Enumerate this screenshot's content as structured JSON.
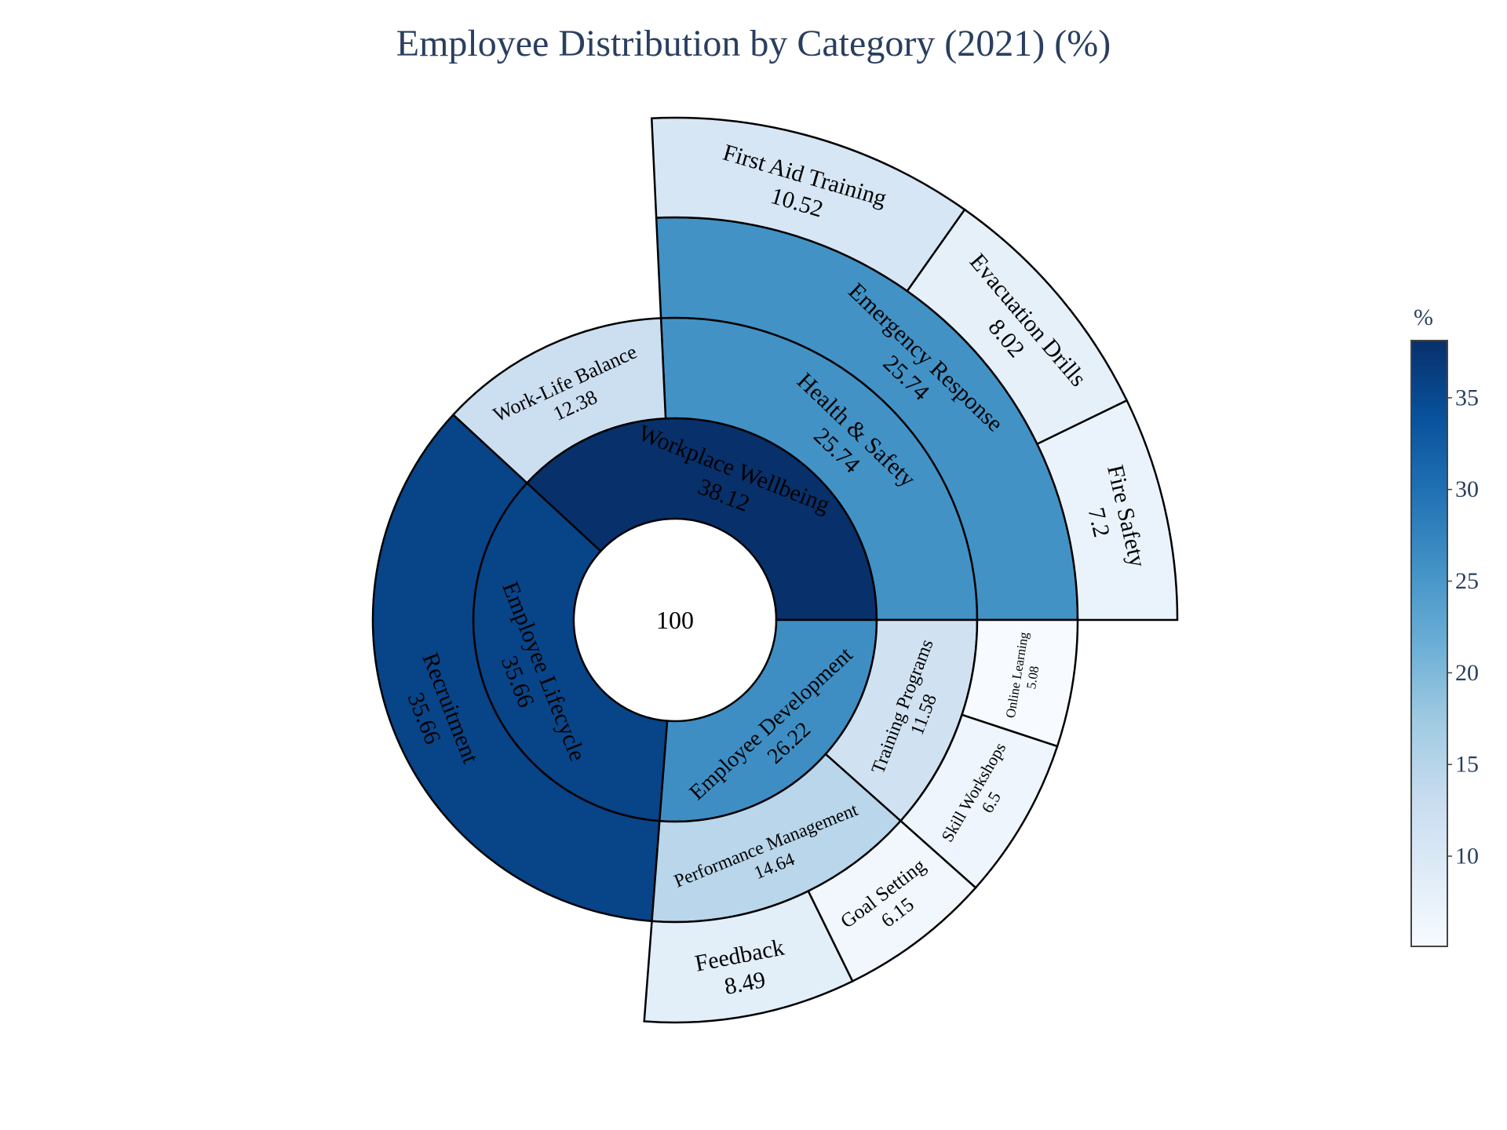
{
  "chart_data": {
    "type": "sunburst",
    "title": "Employee Distribution by Category (2021) (%)",
    "root": {
      "label": "",
      "value": 100
    },
    "nodes": [
      {
        "label": "Workplace Wellbeing",
        "value": 38.12,
        "children": [
          {
            "label": "Health & Safety",
            "value": 25.74,
            "children": [
              {
                "label": "Emergency Response",
                "value": 25.74,
                "children": [
                  {
                    "label": "Fire Safety",
                    "value": 7.2
                  },
                  {
                    "label": "Evacuation Drills",
                    "value": 8.02
                  },
                  {
                    "label": "First Aid Training",
                    "value": 10.52
                  }
                ]
              }
            ]
          },
          {
            "label": "Work-Life Balance",
            "value": 12.38
          }
        ]
      },
      {
        "label": "Employee Lifecycle",
        "value": 35.66,
        "children": [
          {
            "label": "Recruitment",
            "value": 35.66
          }
        ]
      },
      {
        "label": "Employee Development",
        "value": 26.22,
        "children": [
          {
            "label": "Performance Management",
            "value": 14.64,
            "children": [
              {
                "label": "Feedback",
                "value": 8.49
              },
              {
                "label": "Goal Setting",
                "value": 6.15
              }
            ]
          },
          {
            "label": "Training Programs",
            "value": 11.58,
            "children": [
              {
                "label": "Skill Workshops",
                "value": 6.5
              },
              {
                "label": "Online Learning",
                "value": 5.08
              }
            ]
          }
        ]
      }
    ],
    "colorscale": "Blues",
    "color_range": [
      5.08,
      38.12
    ],
    "colorbar": {
      "title": "%",
      "ticks": [
        10,
        15,
        20,
        25,
        30,
        35
      ]
    }
  }
}
